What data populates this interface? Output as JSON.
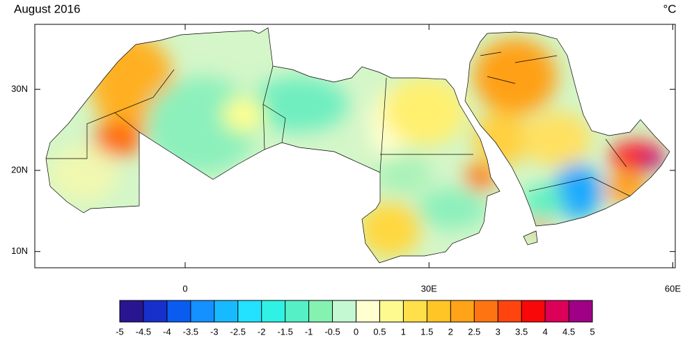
{
  "title": "August 2016",
  "unit": "°C",
  "map": {
    "xlim": [
      -18.5,
      60.3
    ],
    "ylim": [
      8,
      38
    ],
    "xticks": [
      0,
      {
        "value": 30,
        "label": "30E"
      },
      {
        "value": 60,
        "label": "60E"
      }
    ],
    "yticks": [
      {
        "value": 10,
        "label": "10N"
      },
      {
        "value": 20,
        "label": "20N"
      },
      {
        "value": 30,
        "label": "30N"
      }
    ]
  },
  "colorbar": {
    "lim": [
      -5,
      5
    ],
    "ticks": [
      -5,
      -4.5,
      -4,
      -3.5,
      -3,
      -2.5,
      -2,
      -1.5,
      -1,
      -0.5,
      0,
      0.5,
      1,
      1.5,
      2,
      2.5,
      3,
      3.5,
      4,
      4.5,
      5
    ],
    "colors": [
      "#2a1590",
      "#1730cc",
      "#0a5cf0",
      "#1590ff",
      "#18baff",
      "#22e2ff",
      "#30f2e4",
      "#55f0c6",
      "#85f2b2",
      "#c4f8d2",
      "#ffffd0",
      "#fffa90",
      "#ffe04a",
      "#ffc426",
      "#ffa318",
      "#ff7412",
      "#ff4410",
      "#f80808",
      "#dc0058",
      "#a00085"
    ]
  }
}
